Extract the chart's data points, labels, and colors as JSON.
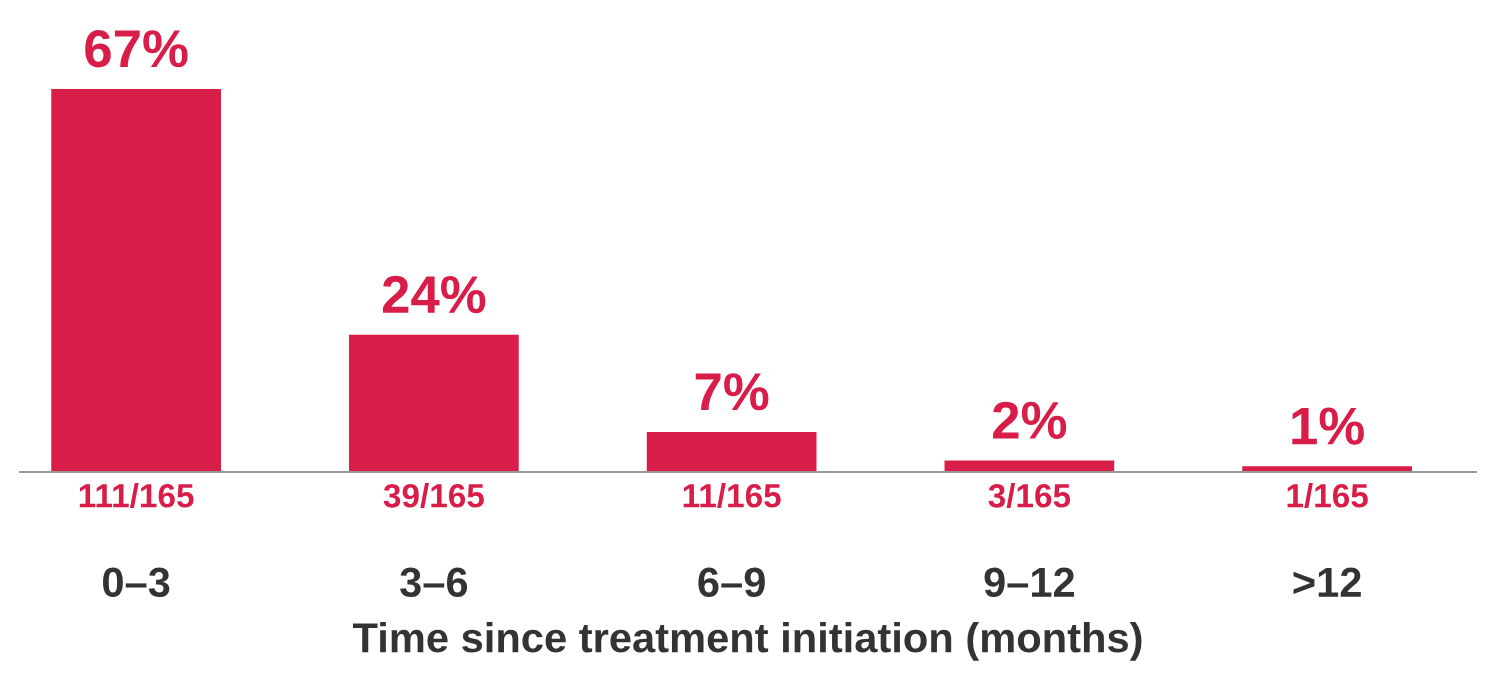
{
  "chart_data": {
    "type": "bar",
    "xlabel": "Time since treatment initiation (months)",
    "categories": [
      "0–3",
      "3–6",
      "6–9",
      "9–12",
      ">12"
    ],
    "values": [
      67,
      24,
      7,
      2,
      1
    ],
    "color": "#d81e48",
    "value_labels": [
      "67%",
      "24%",
      "7%",
      "2%",
      "1%"
    ],
    "annotations": [
      "111/165",
      "39/165",
      "11/165",
      "3/165",
      "1/165"
    ],
    "grid": false,
    "legend": false
  }
}
